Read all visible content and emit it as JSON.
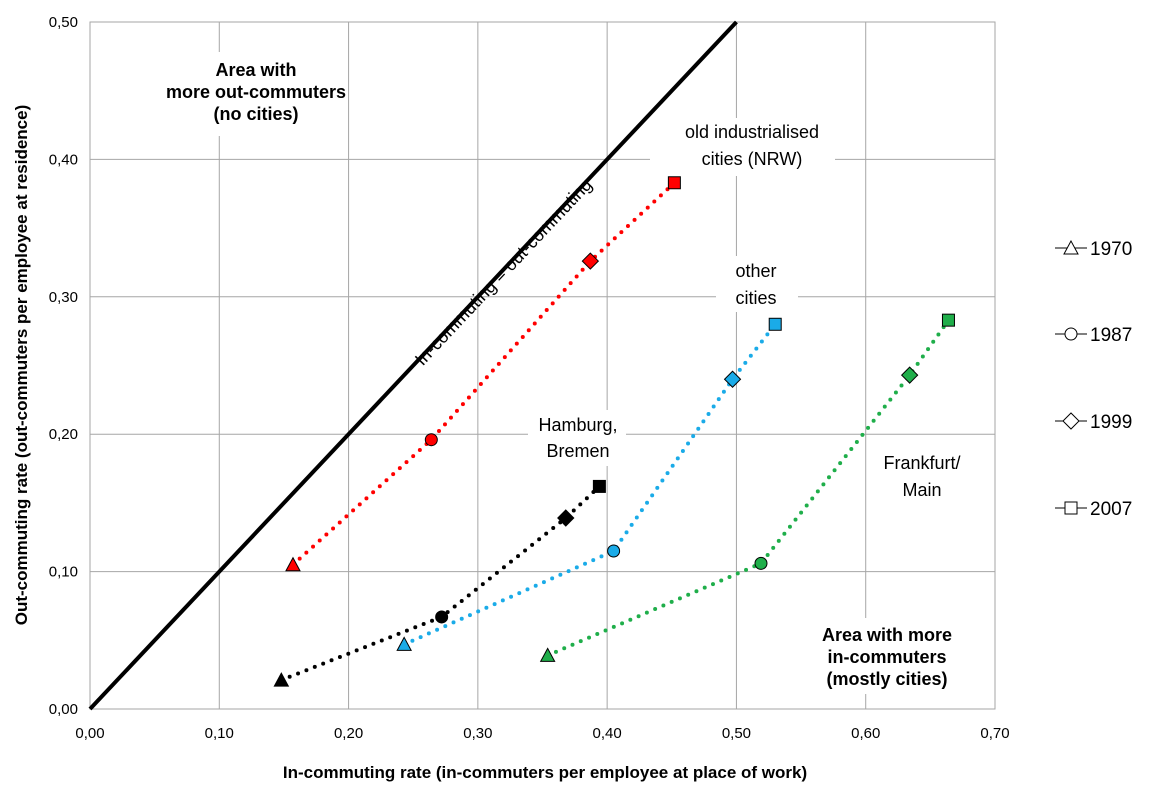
{
  "chart_data": {
    "type": "scatter",
    "xlabel": "In-commuting rate (in-commuters per employee at place of work)",
    "ylabel": "Out-commuting rate (out-commuters per employee at residence)",
    "xlim": [
      0,
      0.7
    ],
    "ylim": [
      0,
      0.5
    ],
    "x_ticks": [
      "0,00",
      "0,10",
      "0,20",
      "0,30",
      "0,40",
      "0,50",
      "0,60",
      "0,70"
    ],
    "y_ticks": [
      "0,00",
      "0,10",
      "0,20",
      "0,30",
      "0,40",
      "0,50"
    ],
    "x_tick_values": [
      0,
      0.1,
      0.2,
      0.3,
      0.4,
      0.5,
      0.6,
      0.7
    ],
    "y_tick_values": [
      0,
      0.1,
      0.2,
      0.3,
      0.4,
      0.5
    ],
    "grid": true,
    "diagonal_line": {
      "from": [
        0,
        0
      ],
      "to": [
        0.5,
        0.5
      ],
      "label": "In-commuting  = out-commuting"
    },
    "years": [
      "1970",
      "1987",
      "1999",
      "2007"
    ],
    "marker_shapes": [
      "triangle",
      "circle",
      "diamond",
      "square"
    ],
    "series": [
      {
        "name": "old industrialised cities (NRW)",
        "color": "#ff0000",
        "x": [
          0.157,
          0.264,
          0.387,
          0.452
        ],
        "y": [
          0.105,
          0.196,
          0.326,
          0.383
        ]
      },
      {
        "name": "other cities",
        "color": "#1aabe8",
        "x": [
          0.243,
          0.405,
          0.497,
          0.53
        ],
        "y": [
          0.047,
          0.115,
          0.24,
          0.28
        ]
      },
      {
        "name": "Hamburg, Bremen",
        "color": "#000000",
        "x": [
          0.148,
          0.272,
          0.368,
          0.394
        ],
        "y": [
          0.021,
          0.067,
          0.139,
          0.162
        ]
      },
      {
        "name": "Frankfurt/ Main",
        "color": "#1fae4a",
        "x": [
          0.354,
          0.519,
          0.634,
          0.664
        ],
        "y": [
          0.039,
          0.106,
          0.243,
          0.283
        ]
      }
    ],
    "annotations": {
      "upper_area": [
        "Area with",
        "more out-commuters",
        "(no cities)"
      ],
      "lower_area": [
        "Area with more",
        "in-commuters",
        "(mostly cities)"
      ],
      "nrw": [
        "old industrialised",
        "cities (NRW)"
      ],
      "other": [
        "other",
        "cities"
      ],
      "hamburg": [
        "Hamburg,",
        "Bremen"
      ],
      "frankfurt": [
        "Frankfurt/",
        "Main"
      ]
    },
    "legend_position": "right"
  }
}
